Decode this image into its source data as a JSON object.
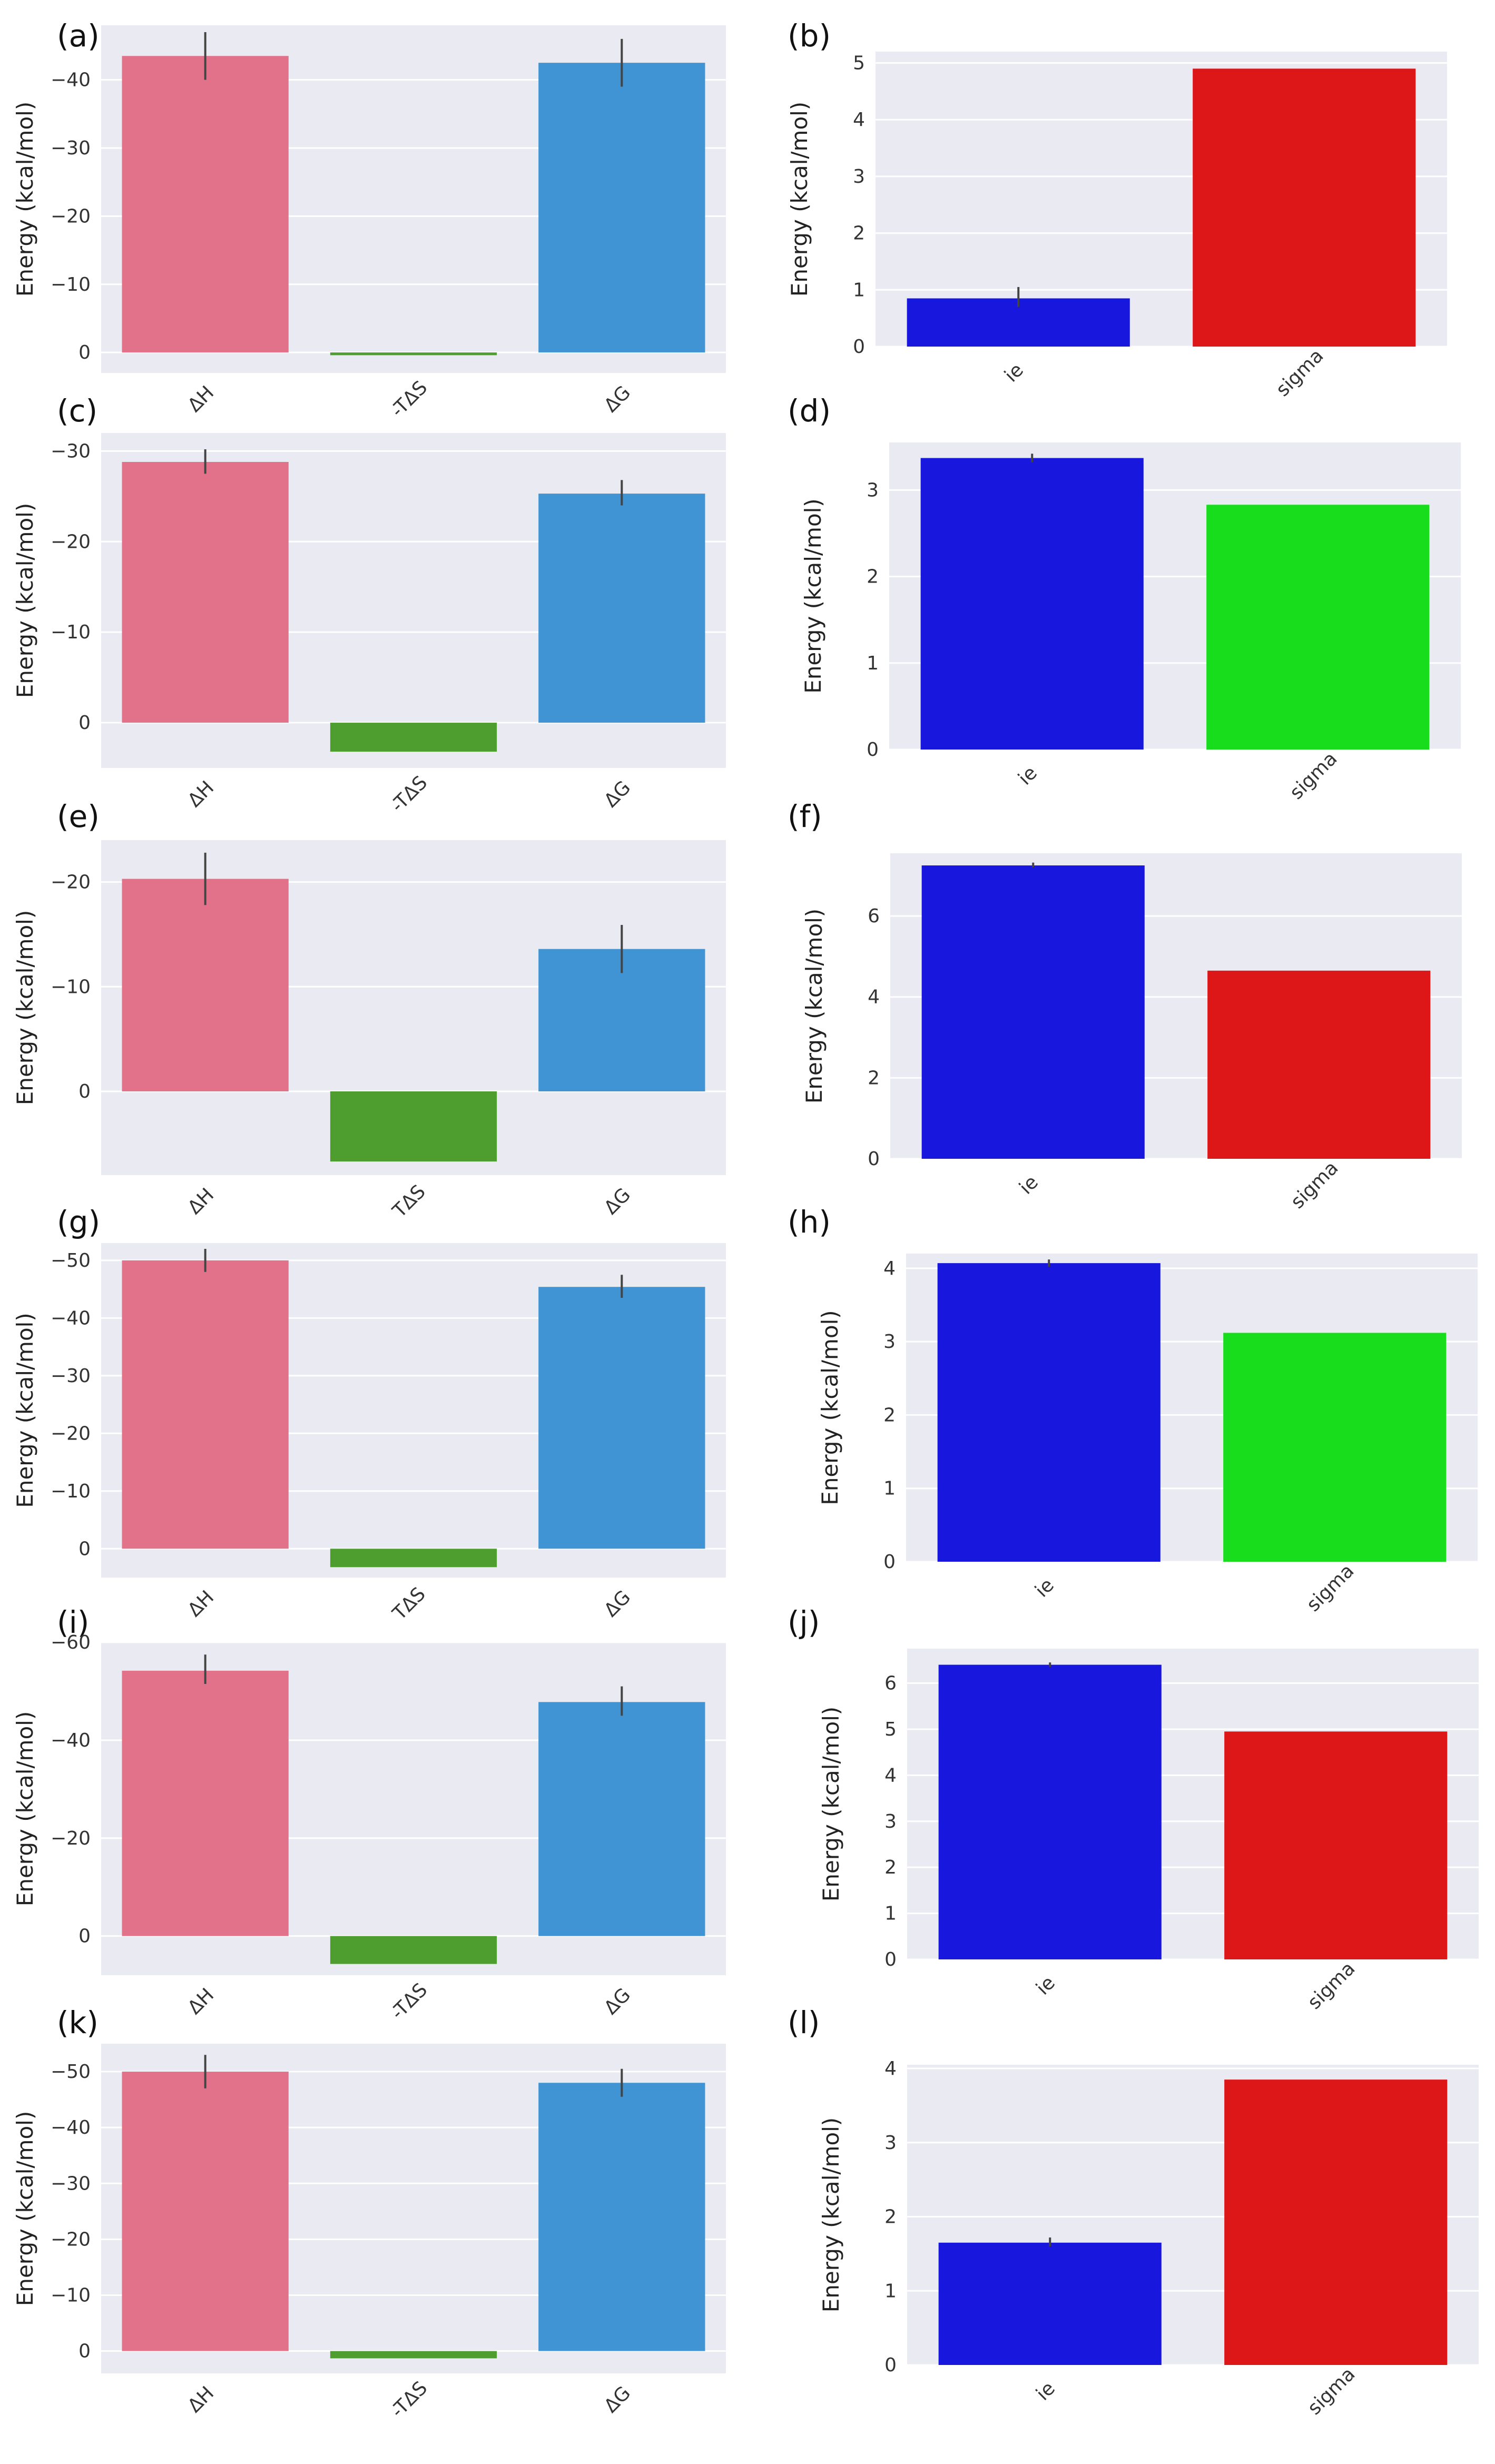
{
  "colors": {
    "background": "#eaeaf2",
    "grid": "#ffffff",
    "dH": "#e1728a",
    "TdS": "#4d9e2e",
    "dG": "#4094d4",
    "ie": "#1717dd",
    "sigma_red": "#dd1717",
    "sigma_green": "#17dd1d",
    "errorbar": "#444444"
  },
  "chart_data": [
    {
      "panel": "(a)",
      "type": "bar",
      "ylabel": "Energy (kcal/mol)",
      "inverted": true,
      "ylim": [
        3,
        -48
      ],
      "ticks": [
        0,
        -10,
        -20,
        -30,
        -40
      ],
      "tick_labels": [
        "0",
        "−10",
        "−20",
        "−30",
        "−40"
      ],
      "categories": [
        "ΔH",
        "-TΔS",
        "ΔG"
      ],
      "values": [
        -43.5,
        0.4,
        -42.5
      ],
      "errors": [
        [
          -40.0,
          -47.0
        ],
        null,
        [
          -39.0,
          -46.0
        ]
      ],
      "color_keys": [
        "dH",
        "TdS",
        "dG"
      ]
    },
    {
      "panel": "(b)",
      "type": "bar",
      "ylabel": "Energy (kcal/mol)",
      "inverted": false,
      "ylim": [
        0,
        5.2
      ],
      "ticks": [
        0,
        1,
        2,
        3,
        4,
        5
      ],
      "tick_labels": [
        "0",
        "1",
        "2",
        "3",
        "4",
        "5"
      ],
      "categories": [
        "ie",
        "sigma"
      ],
      "values": [
        0.85,
        4.9
      ],
      "errors": [
        [
          0.7,
          1.05
        ],
        null
      ],
      "color_keys": [
        "ie",
        "sigma_red"
      ]
    },
    {
      "panel": "(c)",
      "type": "bar",
      "ylabel": "Energy (kcal/mol)",
      "inverted": true,
      "ylim": [
        5,
        -32
      ],
      "ticks": [
        0,
        -10,
        -20,
        -30
      ],
      "tick_labels": [
        "0",
        "−10",
        "−20",
        "−30"
      ],
      "categories": [
        "ΔH",
        "-TΔS",
        "ΔG"
      ],
      "values": [
        -28.8,
        3.2,
        -25.3
      ],
      "errors": [
        [
          -27.5,
          -30.2
        ],
        null,
        [
          -24.0,
          -26.8
        ]
      ],
      "color_keys": [
        "dH",
        "TdS",
        "dG"
      ]
    },
    {
      "panel": "(d)",
      "type": "bar",
      "ylabel": "Energy (kcal/mol)",
      "inverted": false,
      "ylim": [
        0,
        3.55
      ],
      "ticks": [
        0,
        1,
        2,
        3
      ],
      "tick_labels": [
        "0",
        "1",
        "2",
        "3"
      ],
      "categories": [
        "ie",
        "sigma"
      ],
      "values": [
        3.37,
        2.83
      ],
      "errors": [
        [
          3.32,
          3.42
        ],
        null
      ],
      "color_keys": [
        "ie",
        "sigma_green"
      ]
    },
    {
      "panel": "(e)",
      "type": "bar",
      "ylabel": "Energy (kcal/mol)",
      "inverted": true,
      "ylim": [
        8,
        -24
      ],
      "ticks": [
        0,
        -10,
        -20
      ],
      "tick_labels": [
        "0",
        "−10",
        "−20"
      ],
      "categories": [
        "ΔH",
        "TΔS",
        "ΔG"
      ],
      "values": [
        -20.3,
        6.7,
        -13.6
      ],
      "errors": [
        [
          -17.8,
          -22.8
        ],
        null,
        [
          -11.3,
          -15.9
        ]
      ],
      "color_keys": [
        "dH",
        "TdS",
        "dG"
      ]
    },
    {
      "panel": "(f)",
      "type": "bar",
      "ylabel": "Energy (kcal/mol)",
      "inverted": false,
      "ylim": [
        0,
        7.55
      ],
      "ticks": [
        0,
        2,
        4,
        6
      ],
      "tick_labels": [
        "0",
        "2",
        "4",
        "6"
      ],
      "categories": [
        "ie",
        "sigma"
      ],
      "values": [
        7.25,
        4.65
      ],
      "errors": [
        [
          7.2,
          7.32
        ],
        null
      ],
      "color_keys": [
        "ie",
        "sigma_red"
      ]
    },
    {
      "panel": "(g)",
      "type": "bar",
      "ylabel": "Energy (kcal/mol)",
      "inverted": true,
      "ylim": [
        5,
        -53
      ],
      "ticks": [
        0,
        -10,
        -20,
        -30,
        -40,
        -50
      ],
      "tick_labels": [
        "0",
        "−10",
        "−20",
        "−30",
        "−40",
        "−50"
      ],
      "categories": [
        "ΔH",
        "TΔS",
        "ΔG"
      ],
      "values": [
        -50,
        3.2,
        -45.4
      ],
      "errors": [
        [
          -48.0,
          -52.0
        ],
        null,
        [
          -43.5,
          -47.5
        ]
      ],
      "color_keys": [
        "dH",
        "TdS",
        "dG"
      ]
    },
    {
      "panel": "(h)",
      "type": "bar",
      "ylabel": "Energy (kcal/mol)",
      "inverted": false,
      "ylim": [
        0,
        4.2
      ],
      "ticks": [
        0,
        1,
        2,
        3,
        4
      ],
      "tick_labels": [
        "0",
        "1",
        "2",
        "3",
        "4"
      ],
      "categories": [
        "ie",
        "sigma"
      ],
      "values": [
        4.07,
        3.12
      ],
      "errors": [
        [
          4.02,
          4.12
        ],
        null
      ],
      "color_keys": [
        "ie",
        "sigma_green"
      ]
    },
    {
      "panel": "(i)",
      "type": "bar",
      "ylabel": "Energy (kcal/mol)",
      "inverted": true,
      "ylim": [
        8,
        -60
      ],
      "ticks": [
        0,
        -20,
        -40,
        -60
      ],
      "tick_labels": [
        "0",
        "−20",
        "−40",
        "−60"
      ],
      "categories": [
        "ΔH",
        "-TΔS",
        "ΔG"
      ],
      "values": [
        -54.2,
        5.7,
        -47.8
      ],
      "errors": [
        [
          -51.5,
          -57.5
        ],
        null,
        [
          -45.0,
          -51.0
        ]
      ],
      "color_keys": [
        "dH",
        "TdS",
        "dG"
      ]
    },
    {
      "panel": "(j)",
      "type": "bar",
      "ylabel": "Energy (kcal/mol)",
      "inverted": false,
      "ylim": [
        0,
        6.75
      ],
      "ticks": [
        0,
        1,
        2,
        3,
        4,
        5,
        6
      ],
      "tick_labels": [
        "0",
        "1",
        "2",
        "3",
        "4",
        "5",
        "6"
      ],
      "categories": [
        "ie",
        "sigma"
      ],
      "values": [
        6.4,
        4.95
      ],
      "errors": [
        [
          6.35,
          6.45
        ],
        null
      ],
      "color_keys": [
        "ie",
        "sigma_red"
      ]
    },
    {
      "panel": "(k)",
      "type": "bar",
      "ylabel": "Energy (kcal/mol)",
      "inverted": true,
      "ylim": [
        4,
        -55
      ],
      "ticks": [
        0,
        -10,
        -20,
        -30,
        -40,
        -50
      ],
      "tick_labels": [
        "0",
        "−10",
        "−20",
        "−30",
        "−40",
        "−50"
      ],
      "categories": [
        "ΔH",
        "-TΔS",
        "ΔG"
      ],
      "values": [
        -50,
        1.3,
        -48
      ],
      "errors": [
        [
          -47.0,
          -53.0
        ],
        null,
        [
          -45.5,
          -50.5
        ]
      ],
      "color_keys": [
        "dH",
        "TdS",
        "dG"
      ]
    },
    {
      "panel": "(l)",
      "type": "bar",
      "ylabel": "Energy (kcal/mol)",
      "inverted": false,
      "ylim": [
        0,
        4.05
      ],
      "ticks": [
        0,
        1,
        2,
        3,
        4
      ],
      "tick_labels": [
        "0",
        "1",
        "2",
        "3",
        "4"
      ],
      "categories": [
        "ie",
        "sigma"
      ],
      "values": [
        1.65,
        3.85
      ],
      "errors": [
        [
          1.6,
          1.72
        ],
        null
      ],
      "color_keys": [
        "ie",
        "sigma_red"
      ]
    }
  ]
}
